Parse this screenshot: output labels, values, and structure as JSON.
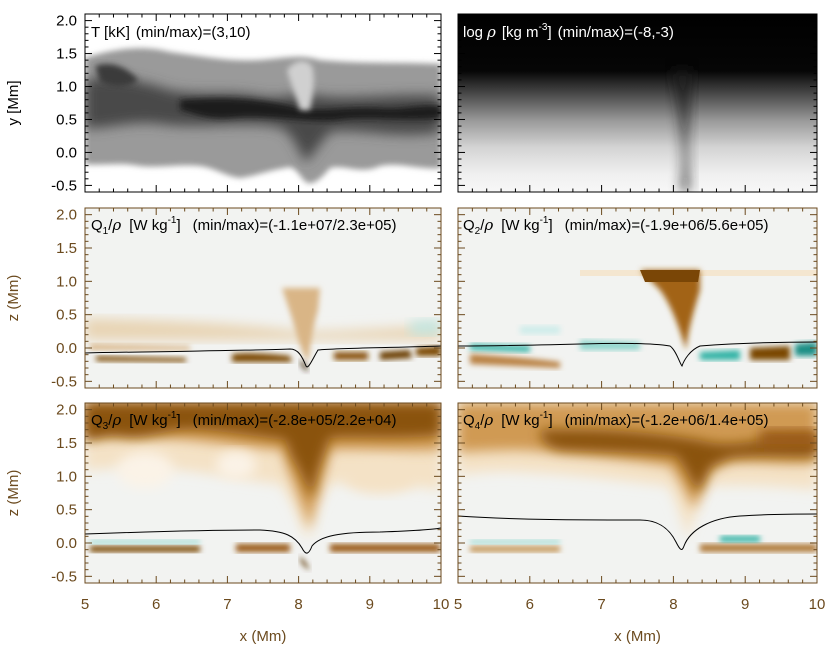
{
  "colors": {
    "axis_dark": "#000000",
    "axis_brown": "#6b4a1e",
    "heat_pos": "#7a4606",
    "heat_neg": "#33b3a6",
    "bg_neutral": "#f2f3f1"
  },
  "chart_data": [
    {
      "type": "heatmap",
      "panel": "top-left",
      "title": "T [kK]",
      "range_text": "(min/max)=(3,10)",
      "colormap": "grayscale (white=min, black=max)",
      "xlim": [
        5,
        10
      ],
      "ylim": [
        -0.6,
        2.1
      ],
      "ylabel": "y [Mm]",
      "yticks": [
        "-0.5",
        "0.0",
        "0.5",
        "1.0",
        "1.5",
        "2.0"
      ]
    },
    {
      "type": "heatmap",
      "panel": "top-right",
      "title": "log ρ [kg m ⁻³]",
      "title_parts": [
        "log",
        "ρ",
        "[kg m",
        "-3",
        "]",
        "(min/max)=(-8,-3)"
      ],
      "colormap": "grayscale (white=min, black=max)",
      "xlim": [
        5,
        10
      ],
      "ylim": [
        -0.6,
        2.1
      ]
    },
    {
      "type": "heatmap",
      "panel": "middle-left",
      "title_parts": [
        "Q",
        "1",
        "/",
        "ρ",
        "[W kg",
        "-1",
        "]",
        "(min/max)=(-1.1e+07/2.3e+05)"
      ],
      "colormap": "diverging (teal=negative, brown=positive)",
      "xlim": [
        5,
        10
      ],
      "ylim": [
        -0.6,
        2.1
      ],
      "ylabel": "z (Mm)",
      "yticks": [
        "-0.5",
        "0.0",
        "0.5",
        "1.0",
        "1.5",
        "2.0"
      ]
    },
    {
      "type": "heatmap",
      "panel": "middle-right",
      "title_parts": [
        "Q",
        "2",
        "/",
        "ρ",
        "[W kg",
        "-1",
        "]",
        "(min/max)=(-1.9e+06/5.6e+05)"
      ],
      "colormap": "diverging (teal=negative, brown=positive)",
      "xlim": [
        5,
        10
      ],
      "ylim": [
        -0.6,
        2.1
      ]
    },
    {
      "type": "heatmap",
      "panel": "bottom-left",
      "title_parts": [
        "Q",
        "3",
        "/",
        "ρ",
        "[W kg",
        "-1",
        "]",
        "(min/max)=(-2.8e+05/2.2e+04)"
      ],
      "colormap": "diverging (teal=negative, brown=positive)",
      "xlim": [
        5,
        10
      ],
      "ylim": [
        -0.6,
        2.1
      ],
      "ylabel": "z (Mm)",
      "xlabel": "x (Mm)",
      "yticks": [
        "-0.5",
        "0.0",
        "0.5",
        "1.0",
        "1.5",
        "2.0"
      ],
      "xticks": [
        "5",
        "6",
        "7",
        "8",
        "9",
        "10"
      ]
    },
    {
      "type": "heatmap",
      "panel": "bottom-right",
      "title_parts": [
        "Q",
        "4",
        "/",
        "ρ",
        "[W kg",
        "-1",
        "]",
        "(min/max)=(-1.2e+06/1.4e+05)"
      ],
      "colormap": "diverging (teal=negative, brown=positive)",
      "xlim": [
        5,
        10
      ],
      "ylim": [
        -0.6,
        2.1
      ],
      "xlabel": "x (Mm)",
      "xticks": [
        "5",
        "6",
        "7",
        "8",
        "9",
        "10"
      ]
    }
  ]
}
